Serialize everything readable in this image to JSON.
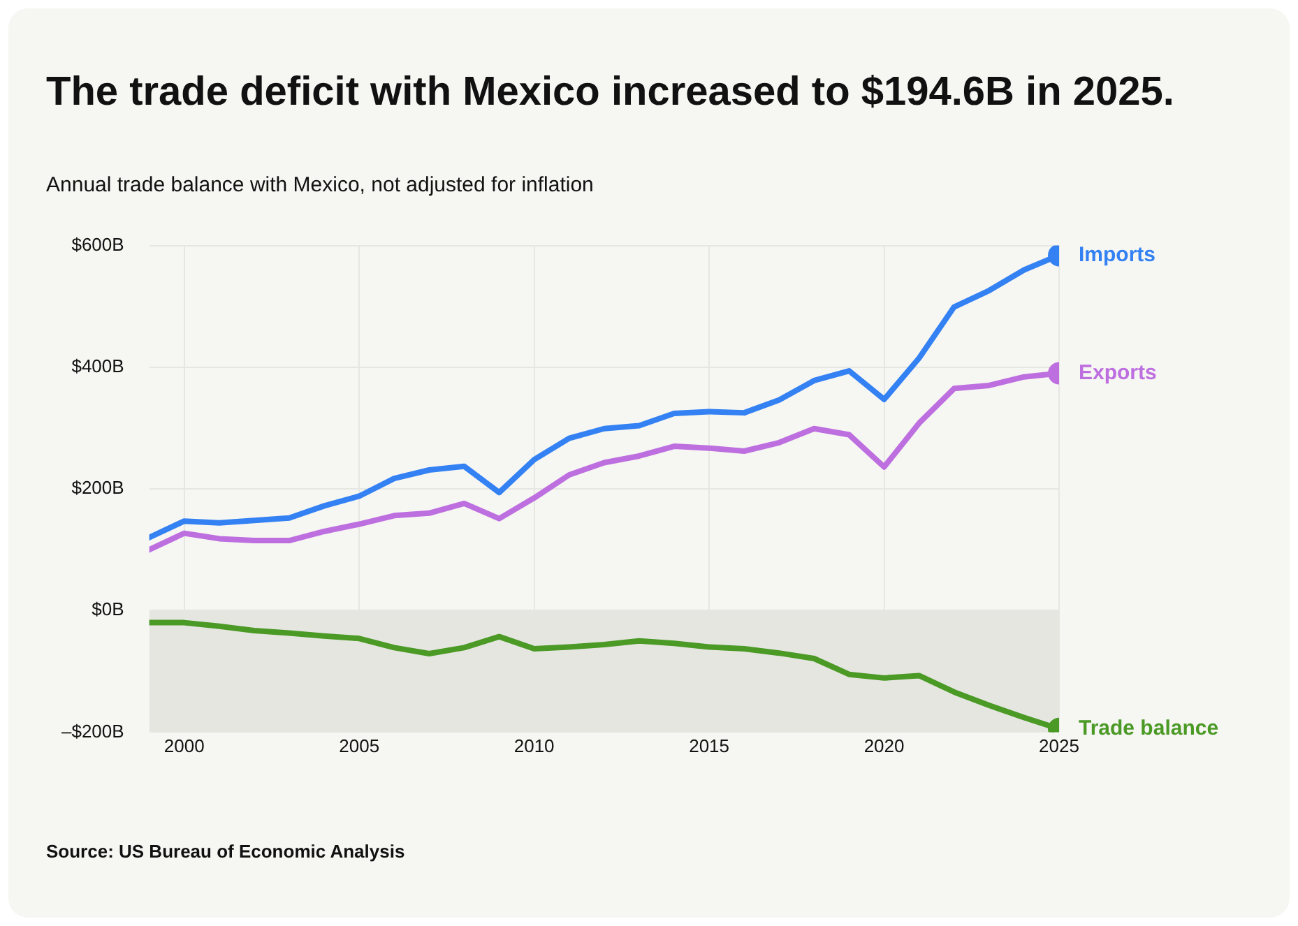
{
  "chart_data": {
    "type": "line",
    "title": "The trade deficit with Mexico increased to $194.6B in 2025.",
    "subtitle": "Annual trade balance with Mexico, not adjusted for inflation",
    "annotations": [
      "Source: US Bureau of Economic Analysis"
    ],
    "x": [
      1999,
      2000,
      2001,
      2002,
      2003,
      2004,
      2005,
      2006,
      2007,
      2008,
      2009,
      2010,
      2011,
      2012,
      2013,
      2014,
      2015,
      2016,
      2017,
      2018,
      2019,
      2020,
      2021,
      2022,
      2023,
      2024,
      2025
    ],
    "series": [
      {
        "name": "Imports",
        "color": "#3381f3",
        "values": [
          120,
          147,
          144,
          148,
          152,
          172,
          188,
          217,
          231,
          237,
          194,
          248,
          283,
          299,
          304,
          324,
          327,
          325,
          346,
          378,
          394,
          347,
          415,
          499,
          526,
          560,
          584
        ]
      },
      {
        "name": "Exports",
        "color": "#bd6fdf",
        "values": [
          100,
          127,
          118,
          115,
          115,
          130,
          142,
          156,
          160,
          176,
          151,
          185,
          223,
          243,
          254,
          270,
          267,
          262,
          276,
          299,
          289,
          236,
          308,
          365,
          370,
          384,
          390
        ]
      },
      {
        "name": "Trade balance",
        "color": "#4b9a26",
        "values": [
          -20,
          -20,
          -26,
          -33,
          -37,
          -42,
          -46,
          -61,
          -71,
          -61,
          -43,
          -63,
          -60,
          -56,
          -50,
          -54,
          -60,
          -63,
          -70,
          -79,
          -105,
          -111,
          -107,
          -134,
          -156,
          -176,
          -194.6
        ]
      }
    ],
    "xlim": [
      1999,
      2025
    ],
    "xticks": [
      2000,
      2005,
      2010,
      2015,
      2020,
      2025
    ],
    "ylim": [
      -200,
      600
    ],
    "yticks": [
      {
        "value": -200,
        "label": "–$200B"
      },
      {
        "value": 0,
        "label": "$0B"
      },
      {
        "value": 200,
        "label": "$200B"
      },
      {
        "value": 400,
        "label": "$400B"
      },
      {
        "value": 600,
        "label": "$600B"
      }
    ],
    "bands": [
      {
        "axis": "y",
        "from": -200,
        "to": 0,
        "color": "#e6e6e1"
      }
    ],
    "grid": true,
    "legend": false,
    "marker": "none",
    "line_style": "solid"
  }
}
